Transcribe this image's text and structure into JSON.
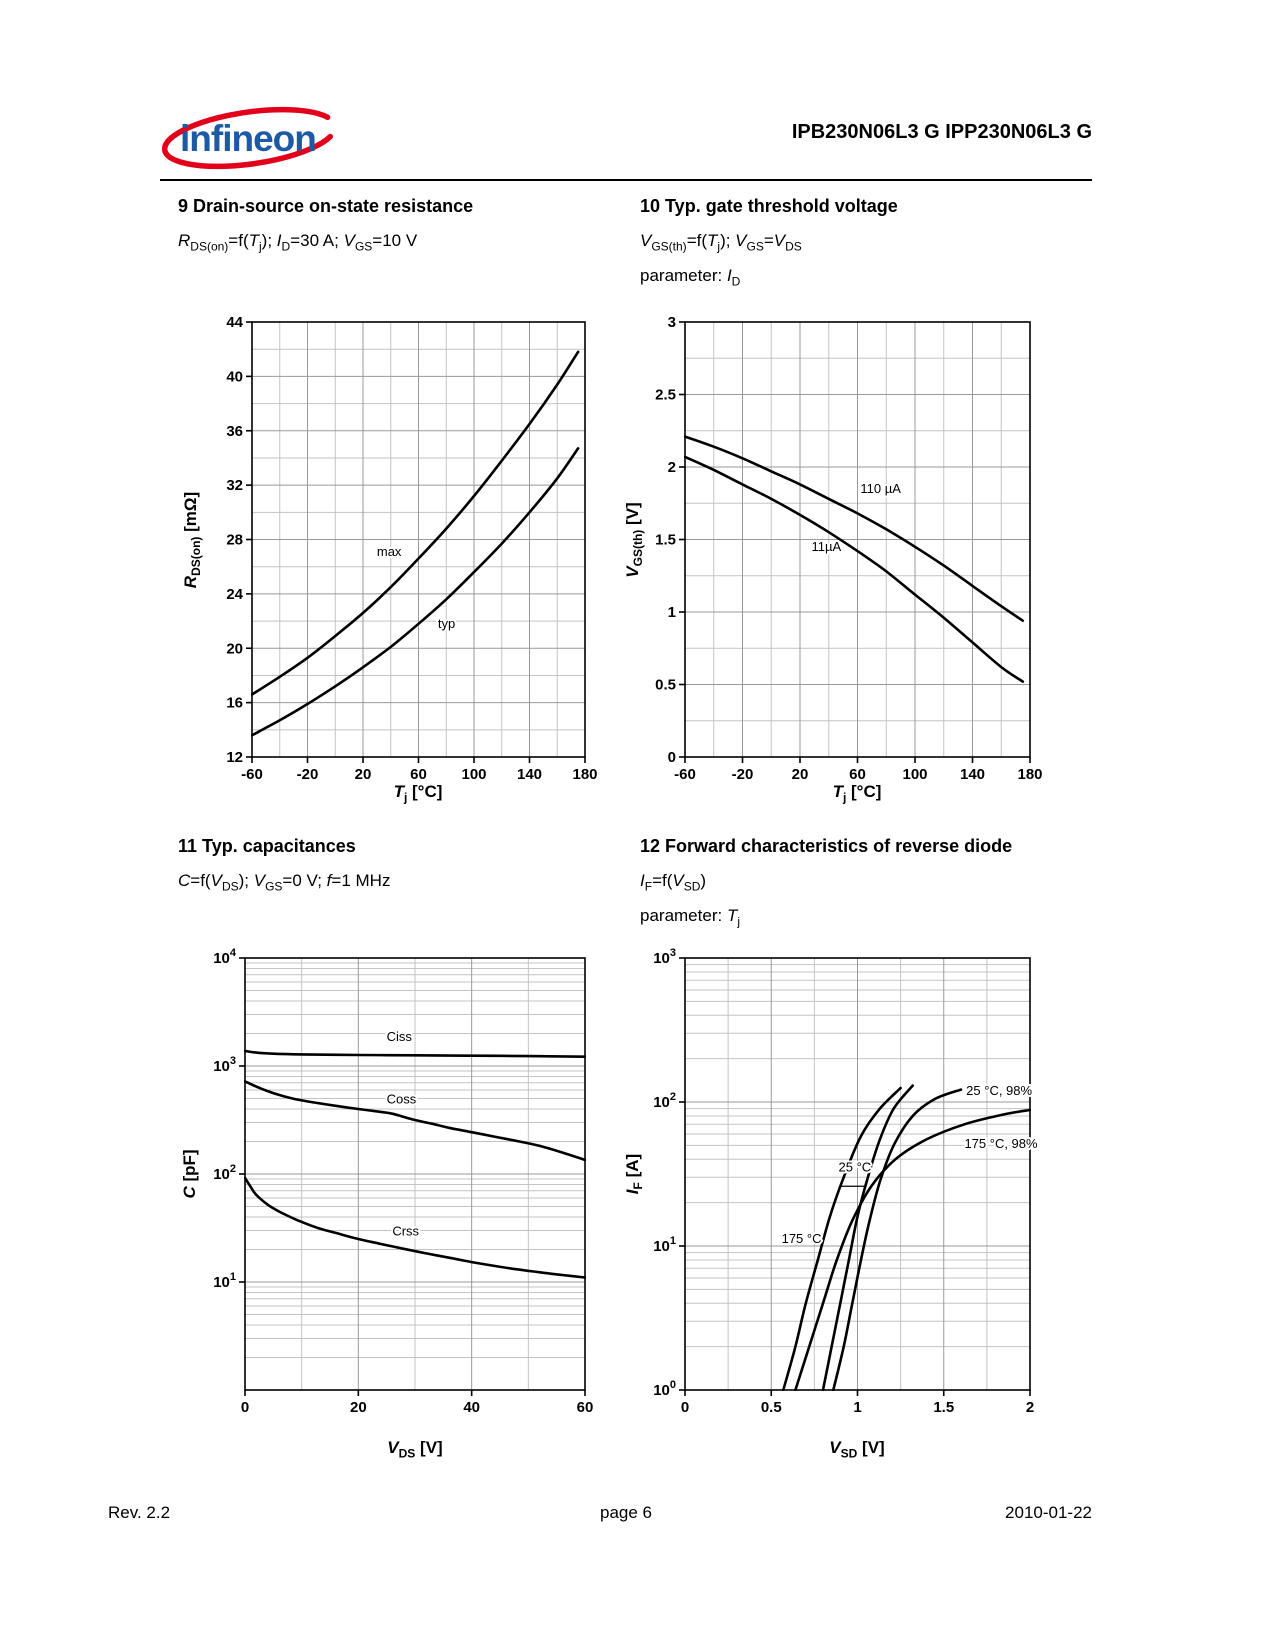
{
  "header": {
    "logo_text": "infineon",
    "title": "IPB230N06L3 G  IPP230N06L3 G"
  },
  "sections": {
    "s9": {
      "heading": "9 Drain-source on-state resistance",
      "conditions_html": "<i>R</i><sub>DS(on)</sub>=f(<i>T</i><sub>j</sub>); <i>I</i><sub>D</sub>=30 A; <i>V</i><sub>GS</sub>=10 V"
    },
    "s10": {
      "heading": "10 Typ. gate threshold voltage",
      "conditions_html": "<i>V</i><sub>GS(th)</sub>=f(<i>T</i><sub>j</sub>); <i>V</i><sub>GS</sub>=<i>V</i><sub>DS</sub>",
      "parameter_html": "parameter: <i>I</i><sub>D</sub>"
    },
    "s11": {
      "heading": "11 Typ. capacitances",
      "conditions_html": "<i>C</i>=f(<i>V</i><sub>DS</sub>); <i>V</i><sub>GS</sub>=0 V; <i>f</i>=1 MHz"
    },
    "s12": {
      "heading": "12 Forward characteristics of reverse diode",
      "conditions_html": "<i>I</i><sub>F</sub>=f(<i>V</i><sub>SD</sub>)",
      "parameter_html": "parameter: <i>T</i><sub>j</sub>"
    }
  },
  "axis_labels": {
    "tj_html": "<i>T</i><sub>j</sub> [°C]",
    "rdson_html": "<i>R</i><sub>DS(on)</sub> [mΩ]",
    "vgsth_html": "<i>V</i><sub>GS(th)</sub> [V]",
    "vds_html": "<i>V</i><sub>DS</sub> [V]",
    "c_html": "<i>C</i> [pF]",
    "vsd_html": "<i>V</i><sub>SD</sub> [V]",
    "if_html": "<i>I</i><sub>F</sub> [A]"
  },
  "footer": {
    "rev": "Rev. 2.2",
    "page": "page 6",
    "date": "2010-01-22"
  },
  "colors": {
    "brand_blue": "#1c5aa6",
    "brand_red": "#e2001a",
    "curve": "#000000",
    "grid_major": "#999999",
    "grid_minor": "#c3c3c3"
  },
  "chart_data": [
    {
      "id": "rdson",
      "type": "line",
      "title": "9 Drain-source on-state resistance",
      "conditions": "RDS(on)=f(Tj); ID=30 A; VGS=10 V",
      "xlabel": "Tj [°C]",
      "ylabel": "RDS(on) [mΩ]",
      "xscale": "linear",
      "yscale": "linear",
      "xlim": [
        -60,
        180
      ],
      "ylim": [
        12,
        44
      ],
      "xticks": [
        -60,
        -20,
        20,
        60,
        100,
        140,
        180
      ],
      "xtick_labels": [
        "-60",
        "-20",
        "20",
        "60",
        "100",
        "140",
        "180"
      ],
      "yticks": [
        12,
        16,
        20,
        24,
        28,
        32,
        36,
        40,
        44
      ],
      "ytick_labels": [
        "12",
        "16",
        "20",
        "24",
        "28",
        "32",
        "36",
        "40",
        "44"
      ],
      "xminor": 20,
      "yminor": 2,
      "series": [
        {
          "name": "max",
          "label": {
            "text": "max",
            "x": 30,
            "y": 26.8,
            "anchor": "start"
          },
          "points": [
            [
              -60,
              16.6
            ],
            [
              -40,
              17.9
            ],
            [
              -20,
              19.3
            ],
            [
              0,
              20.9
            ],
            [
              20,
              22.6
            ],
            [
              40,
              24.5
            ],
            [
              60,
              26.6
            ],
            [
              80,
              28.8
            ],
            [
              100,
              31.2
            ],
            [
              120,
              33.8
            ],
            [
              140,
              36.5
            ],
            [
              160,
              39.4
            ],
            [
              175,
              41.8
            ]
          ]
        },
        {
          "name": "typ",
          "label": {
            "text": "typ",
            "x": 74,
            "y": 21.5,
            "anchor": "start"
          },
          "points": [
            [
              -60,
              13.6
            ],
            [
              -40,
              14.7
            ],
            [
              -20,
              15.9
            ],
            [
              0,
              17.2
            ],
            [
              20,
              18.6
            ],
            [
              40,
              20.1
            ],
            [
              60,
              21.8
            ],
            [
              80,
              23.6
            ],
            [
              100,
              25.6
            ],
            [
              120,
              27.7
            ],
            [
              140,
              30.0
            ],
            [
              160,
              32.5
            ],
            [
              175,
              34.7
            ]
          ]
        }
      ]
    },
    {
      "id": "vgsth",
      "type": "line",
      "title": "10 Typ. gate threshold voltage",
      "conditions": "VGS(th)=f(Tj); VGS=VDS; parameter: ID",
      "xlabel": "Tj [°C]",
      "ylabel": "VGS(th) [V]",
      "xscale": "linear",
      "yscale": "linear",
      "xlim": [
        -60,
        180
      ],
      "ylim": [
        0,
        3
      ],
      "xticks": [
        -60,
        -20,
        20,
        60,
        100,
        140,
        180
      ],
      "xtick_labels": [
        "-60",
        "-20",
        "20",
        "60",
        "100",
        "140",
        "180"
      ],
      "yticks": [
        0,
        0.5,
        1,
        1.5,
        2,
        2.5,
        3
      ],
      "ytick_labels": [
        "0",
        "0.5",
        "1",
        "1.5",
        "2",
        "2.5",
        "3"
      ],
      "xminor": 20,
      "yminor": 0.25,
      "series": [
        {
          "name": "110 µA",
          "label": {
            "text": "110 µA",
            "x": 62,
            "y": 1.82,
            "anchor": "start"
          },
          "points": [
            [
              -60,
              2.21
            ],
            [
              -40,
              2.14
            ],
            [
              -20,
              2.06
            ],
            [
              0,
              1.97
            ],
            [
              20,
              1.88
            ],
            [
              40,
              1.78
            ],
            [
              60,
              1.68
            ],
            [
              80,
              1.57
            ],
            [
              100,
              1.45
            ],
            [
              120,
              1.32
            ],
            [
              140,
              1.18
            ],
            [
              160,
              1.04
            ],
            [
              175,
              0.94
            ]
          ]
        },
        {
          "name": "11µA",
          "label": {
            "text": "11µA",
            "x": 28,
            "y": 1.42,
            "anchor": "start"
          },
          "points": [
            [
              -60,
              2.07
            ],
            [
              -40,
              1.98
            ],
            [
              -20,
              1.88
            ],
            [
              0,
              1.78
            ],
            [
              20,
              1.67
            ],
            [
              40,
              1.55
            ],
            [
              60,
              1.42
            ],
            [
              80,
              1.28
            ],
            [
              100,
              1.12
            ],
            [
              120,
              0.96
            ],
            [
              140,
              0.79
            ],
            [
              160,
              0.62
            ],
            [
              175,
              0.52
            ]
          ]
        }
      ]
    },
    {
      "id": "capacitances",
      "type": "line",
      "title": "11 Typ. capacitances",
      "conditions": "C=f(VDS); VGS=0 V; f=1 MHz",
      "xlabel": "VDS [V]",
      "ylabel": "C [pF]",
      "xscale": "linear",
      "yscale": "log",
      "xlim": [
        0,
        60
      ],
      "ylim": [
        1,
        10000
      ],
      "xticks": [
        0,
        20,
        40,
        60
      ],
      "xtick_labels": [
        "0",
        "20",
        "40",
        "60"
      ],
      "ytick_exps": [
        1,
        2,
        3,
        4
      ],
      "xminor": 10,
      "series": [
        {
          "name": "Ciss",
          "label": {
            "text": "Ciss",
            "x": 25,
            "y": 1700,
            "anchor": "start"
          },
          "points": [
            [
              0,
              1380
            ],
            [
              2,
              1330
            ],
            [
              5,
              1300
            ],
            [
              10,
              1280
            ],
            [
              20,
              1265
            ],
            [
              30,
              1255
            ],
            [
              40,
              1245
            ],
            [
              50,
              1235
            ],
            [
              60,
              1220
            ]
          ]
        },
        {
          "name": "Coss",
          "label": {
            "text": "Coss",
            "x": 25,
            "y": 450,
            "anchor": "start"
          },
          "points": [
            [
              0,
              720
            ],
            [
              1,
              680
            ],
            [
              2,
              645
            ],
            [
              4,
              585
            ],
            [
              6,
              540
            ],
            [
              8,
              505
            ],
            [
              10,
              480
            ],
            [
              13,
              452
            ],
            [
              16,
              428
            ],
            [
              20,
              400
            ],
            [
              24,
              376
            ],
            [
              26,
              362
            ],
            [
              28,
              338
            ],
            [
              30,
              316
            ],
            [
              33,
              292
            ],
            [
              36,
              268
            ],
            [
              40,
              244
            ],
            [
              44,
              222
            ],
            [
              48,
              202
            ],
            [
              52,
              182
            ],
            [
              56,
              158
            ],
            [
              60,
              135
            ]
          ]
        },
        {
          "name": "Crss",
          "label": {
            "text": "Crss",
            "x": 26,
            "y": 27,
            "anchor": "start"
          },
          "points": [
            [
              0,
              92
            ],
            [
              1,
              76
            ],
            [
              2,
              64
            ],
            [
              4,
              52
            ],
            [
              6,
              45
            ],
            [
              8,
              40
            ],
            [
              10,
              36
            ],
            [
              13,
              31.5
            ],
            [
              16,
              28.5
            ],
            [
              20,
              25
            ],
            [
              24,
              22.5
            ],
            [
              28,
              20.3
            ],
            [
              32,
              18.4
            ],
            [
              36,
              16.8
            ],
            [
              40,
              15.3
            ],
            [
              44,
              14.1
            ],
            [
              48,
              13.1
            ],
            [
              52,
              12.3
            ],
            [
              56,
              11.6
            ],
            [
              60,
              11
            ]
          ]
        }
      ]
    },
    {
      "id": "diode-forward",
      "type": "line",
      "title": "12 Forward characteristics of reverse diode",
      "conditions": "IF=f(VSD); parameter: Tj",
      "xlabel": "VSD [V]",
      "ylabel": "IF [A]",
      "xscale": "linear",
      "yscale": "log",
      "xlim": [
        0,
        2
      ],
      "ylim": [
        1,
        1000
      ],
      "xticks": [
        0,
        0.5,
        1,
        1.5,
        2
      ],
      "xtick_labels": [
        "0",
        "0.5",
        "1",
        "1.5",
        "2"
      ],
      "ytick_exps": [
        0,
        1,
        2,
        3
      ],
      "xminor": 0.25,
      "series": [
        {
          "name": "25 °C, 98%",
          "label": {
            "text": "25 °C, 98%",
            "x": 1.63,
            "y": 112,
            "anchor": "start"
          },
          "points": [
            [
              0.86,
              1
            ],
            [
              0.92,
              2
            ],
            [
              0.97,
              4
            ],
            [
              1.02,
              8
            ],
            [
              1.07,
              15
            ],
            [
              1.13,
              28
            ],
            [
              1.21,
              50
            ],
            [
              1.32,
              80
            ],
            [
              1.45,
              105
            ],
            [
              1.6,
              122
            ]
          ]
        },
        {
          "name": "175 °C, 98%",
          "label": {
            "text": "175 °C, 98%",
            "x": 1.62,
            "y": 48,
            "anchor": "start"
          },
          "points": [
            [
              0.64,
              1
            ],
            [
              0.72,
              2
            ],
            [
              0.8,
              4
            ],
            [
              0.88,
              8
            ],
            [
              0.97,
              15
            ],
            [
              1.08,
              26
            ],
            [
              1.22,
              40
            ],
            [
              1.4,
              55
            ],
            [
              1.62,
              70
            ],
            [
              1.85,
              82
            ],
            [
              2.0,
              88
            ]
          ]
        },
        {
          "name": "25 °C",
          "label": {
            "text": "25 °C",
            "x": 0.89,
            "y": 33,
            "anchor": "start"
          },
          "leader": [
            [
              0.9,
              26
            ],
            [
              1.045,
              26
            ]
          ],
          "points": [
            [
              0.8,
              1
            ],
            [
              0.85,
              2
            ],
            [
              0.9,
              4
            ],
            [
              0.95,
              8
            ],
            [
              1.0,
              16
            ],
            [
              1.06,
              30
            ],
            [
              1.13,
              55
            ],
            [
              1.21,
              90
            ],
            [
              1.32,
              130
            ]
          ]
        },
        {
          "name": "175 °C",
          "label": {
            "text": "175 °C",
            "x": 0.56,
            "y": 10.5,
            "anchor": "start"
          },
          "points": [
            [
              0.57,
              1
            ],
            [
              0.64,
              2
            ],
            [
              0.7,
              4
            ],
            [
              0.77,
              8
            ],
            [
              0.84,
              16
            ],
            [
              0.92,
              30
            ],
            [
              1.02,
              58
            ],
            [
              1.13,
              90
            ],
            [
              1.25,
              125
            ]
          ]
        }
      ]
    }
  ]
}
